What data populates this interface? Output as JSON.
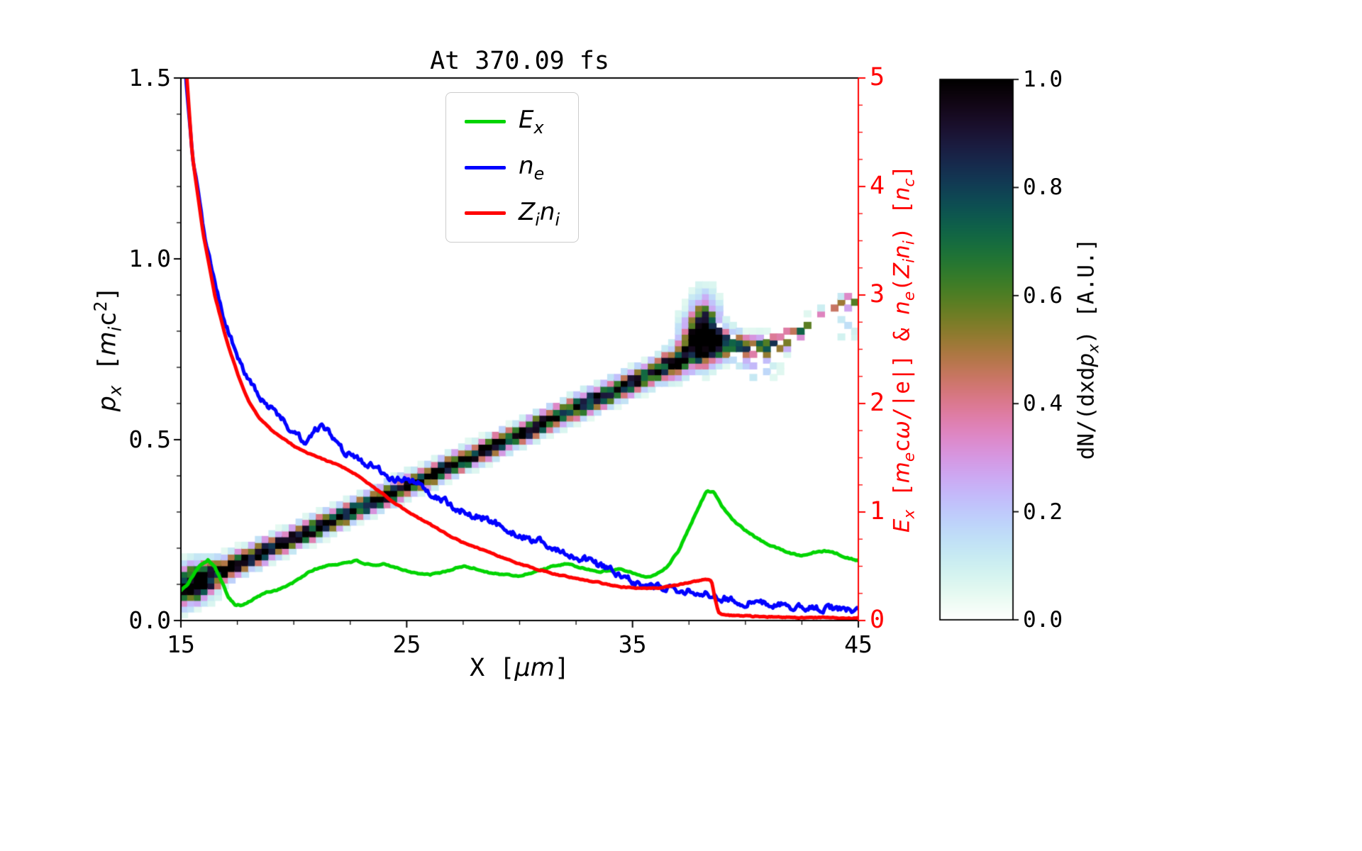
{
  "title": "At 370.09 fs",
  "axes": {
    "x": {
      "label": "X [μm]",
      "range": [
        15,
        45
      ],
      "tick_values": [
        15,
        25,
        35,
        45
      ],
      "tick_labels": [
        "15",
        "25",
        "35",
        "45"
      ],
      "minor_step": 2.5
    },
    "y_left": {
      "label": "p_x [m_ic^2]",
      "range": [
        0,
        1.5
      ],
      "tick_values": [
        0.0,
        0.5,
        1.0,
        1.5
      ],
      "tick_labels": [
        "0.0",
        "0.5",
        "1.0",
        "1.5"
      ],
      "minor_step": 0.1,
      "color": "#000000"
    },
    "y_right": {
      "label": "E_x [m_ecω/|e|] & n_e(Z_in_i) [n_c]",
      "range": [
        0,
        5
      ],
      "tick_values": [
        0,
        1,
        2,
        3,
        4,
        5
      ],
      "tick_labels": [
        "0",
        "1",
        "2",
        "3",
        "4",
        "5"
      ],
      "minor_step": 0.25,
      "color": "#ff0000"
    }
  },
  "colorbar": {
    "label": "dN/(dxdp_x) [A.U.]",
    "range": [
      0,
      1
    ],
    "tick_values": [
      0.0,
      0.2,
      0.4,
      0.6,
      0.8,
      1.0
    ],
    "tick_labels": [
      "0.0",
      "0.2",
      "0.4",
      "0.6",
      "0.8",
      "1.0"
    ],
    "colormap": "cubehelix_r"
  },
  "legend": [
    {
      "label": "E_x",
      "color": "#00d400"
    },
    {
      "label": "n_e",
      "color": "#0000ff"
    },
    {
      "label": "Z_in_i",
      "color": "#ff0000"
    }
  ],
  "chart_data": {
    "type": "composite",
    "subtypes": [
      "heatmap",
      "line"
    ],
    "title": "At 370.09 fs",
    "xlabel": "X [μm]",
    "xlim": [
      15,
      45
    ],
    "ylim_left": [
      0,
      1.5
    ],
    "ylim_right": [
      0,
      5
    ],
    "lines": [
      {
        "name": "E_x",
        "axis": "right",
        "color": "#00d400",
        "jitter": 0.004,
        "points": [
          [
            15,
            0.28
          ],
          [
            15.3,
            0.33
          ],
          [
            15.6,
            0.44
          ],
          [
            15.9,
            0.52
          ],
          [
            16.2,
            0.56
          ],
          [
            16.5,
            0.5
          ],
          [
            16.8,
            0.36
          ],
          [
            17.1,
            0.22
          ],
          [
            17.4,
            0.15
          ],
          [
            17.7,
            0.14
          ],
          [
            18,
            0.17
          ],
          [
            18.4,
            0.22
          ],
          [
            18.8,
            0.26
          ],
          [
            19.2,
            0.28
          ],
          [
            19.6,
            0.31
          ],
          [
            20,
            0.35
          ],
          [
            20.4,
            0.41
          ],
          [
            20.8,
            0.46
          ],
          [
            21.2,
            0.49
          ],
          [
            21.6,
            0.51
          ],
          [
            22,
            0.52
          ],
          [
            22.4,
            0.54
          ],
          [
            22.8,
            0.55
          ],
          [
            23.2,
            0.52
          ],
          [
            23.6,
            0.5
          ],
          [
            24,
            0.52
          ],
          [
            24.4,
            0.5
          ],
          [
            24.8,
            0.47
          ],
          [
            25.2,
            0.45
          ],
          [
            25.6,
            0.43
          ],
          [
            26,
            0.42
          ],
          [
            26.5,
            0.44
          ],
          [
            27,
            0.47
          ],
          [
            27.5,
            0.5
          ],
          [
            28,
            0.48
          ],
          [
            28.5,
            0.45
          ],
          [
            29,
            0.43
          ],
          [
            29.5,
            0.42
          ],
          [
            30,
            0.41
          ],
          [
            30.5,
            0.44
          ],
          [
            31,
            0.47
          ],
          [
            31.5,
            0.5
          ],
          [
            32,
            0.52
          ],
          [
            32.5,
            0.5
          ],
          [
            33,
            0.47
          ],
          [
            33.5,
            0.45
          ],
          [
            34,
            0.46
          ],
          [
            34.5,
            0.48
          ],
          [
            35,
            0.44
          ],
          [
            35.5,
            0.4
          ],
          [
            36,
            0.42
          ],
          [
            36.5,
            0.49
          ],
          [
            37,
            0.63
          ],
          [
            37.5,
            0.85
          ],
          [
            38,
            1.08
          ],
          [
            38.3,
            1.2
          ],
          [
            38.6,
            1.18
          ],
          [
            39,
            1.04
          ],
          [
            39.5,
            0.92
          ],
          [
            40,
            0.83
          ],
          [
            40.5,
            0.76
          ],
          [
            41,
            0.7
          ],
          [
            41.5,
            0.66
          ],
          [
            42,
            0.62
          ],
          [
            42.5,
            0.6
          ],
          [
            43,
            0.63
          ],
          [
            43.5,
            0.64
          ],
          [
            44,
            0.62
          ],
          [
            44.5,
            0.58
          ],
          [
            45,
            0.55
          ]
        ]
      },
      {
        "name": "n_e",
        "axis": "right",
        "color": "#0000ff",
        "jitter": 0.02,
        "points": [
          [
            15,
            6.2
          ],
          [
            15.2,
            5.0
          ],
          [
            15.5,
            4.3
          ],
          [
            16,
            3.6
          ],
          [
            16.5,
            3.1
          ],
          [
            17,
            2.72
          ],
          [
            17.5,
            2.45
          ],
          [
            18,
            2.2
          ],
          [
            18.5,
            2.05
          ],
          [
            19,
            1.96
          ],
          [
            19.5,
            1.86
          ],
          [
            20,
            1.72
          ],
          [
            20.5,
            1.66
          ],
          [
            21,
            1.76
          ],
          [
            21.3,
            1.8
          ],
          [
            21.6,
            1.72
          ],
          [
            22,
            1.58
          ],
          [
            22.5,
            1.52
          ],
          [
            23,
            1.47
          ],
          [
            23.5,
            1.43
          ],
          [
            24,
            1.36
          ],
          [
            24.5,
            1.3
          ],
          [
            25,
            1.32
          ],
          [
            25.5,
            1.26
          ],
          [
            26,
            1.17
          ],
          [
            26.5,
            1.12
          ],
          [
            27,
            1.06
          ],
          [
            27.5,
            1.01
          ],
          [
            28,
            0.97
          ],
          [
            28.5,
            0.94
          ],
          [
            29,
            0.89
          ],
          [
            29.5,
            0.81
          ],
          [
            30,
            0.79
          ],
          [
            30.5,
            0.74
          ],
          [
            31,
            0.73
          ],
          [
            31.5,
            0.66
          ],
          [
            32,
            0.61
          ],
          [
            32.5,
            0.59
          ],
          [
            33,
            0.56
          ],
          [
            33.5,
            0.51
          ],
          [
            34,
            0.46
          ],
          [
            34.5,
            0.41
          ],
          [
            35,
            0.36
          ],
          [
            35.5,
            0.33
          ],
          [
            36,
            0.31
          ],
          [
            36.5,
            0.29
          ],
          [
            37,
            0.28
          ],
          [
            37.5,
            0.27
          ],
          [
            38,
            0.26
          ],
          [
            38.5,
            0.23
          ],
          [
            39,
            0.21
          ],
          [
            39.5,
            0.19
          ],
          [
            40,
            0.17
          ],
          [
            40.5,
            0.16
          ],
          [
            41,
            0.15
          ],
          [
            41.5,
            0.14
          ],
          [
            42,
            0.13
          ],
          [
            42.5,
            0.13
          ],
          [
            43,
            0.12
          ],
          [
            43.5,
            0.11
          ],
          [
            44,
            0.11
          ],
          [
            44.5,
            0.11
          ],
          [
            45,
            0.1
          ]
        ]
      },
      {
        "name": "Z_in_i",
        "axis": "right",
        "color": "#ff0000",
        "jitter": 0.003,
        "points": [
          [
            15,
            6.6
          ],
          [
            15.2,
            5.2
          ],
          [
            15.5,
            4.3
          ],
          [
            16,
            3.55
          ],
          [
            16.5,
            3.0
          ],
          [
            17,
            2.6
          ],
          [
            17.5,
            2.28
          ],
          [
            18,
            2.02
          ],
          [
            18.5,
            1.86
          ],
          [
            19,
            1.76
          ],
          [
            19.5,
            1.68
          ],
          [
            20,
            1.61
          ],
          [
            20.5,
            1.55
          ],
          [
            21,
            1.51
          ],
          [
            21.5,
            1.47
          ],
          [
            22,
            1.43
          ],
          [
            22.5,
            1.38
          ],
          [
            23,
            1.31
          ],
          [
            23.5,
            1.23
          ],
          [
            24,
            1.16
          ],
          [
            24.5,
            1.08
          ],
          [
            25,
            1.01
          ],
          [
            25.5,
            0.95
          ],
          [
            26,
            0.89
          ],
          [
            26.5,
            0.83
          ],
          [
            27,
            0.77
          ],
          [
            27.5,
            0.72
          ],
          [
            28,
            0.68
          ],
          [
            28.5,
            0.64
          ],
          [
            29,
            0.6
          ],
          [
            29.5,
            0.56
          ],
          [
            30,
            0.52
          ],
          [
            30.5,
            0.49
          ],
          [
            31,
            0.46
          ],
          [
            31.5,
            0.43
          ],
          [
            32,
            0.41
          ],
          [
            32.5,
            0.39
          ],
          [
            33,
            0.37
          ],
          [
            33.5,
            0.35
          ],
          [
            34,
            0.33
          ],
          [
            34.5,
            0.31
          ],
          [
            35,
            0.3
          ],
          [
            35.5,
            0.3
          ],
          [
            36,
            0.3
          ],
          [
            36.5,
            0.31
          ],
          [
            37,
            0.33
          ],
          [
            37.5,
            0.35
          ],
          [
            38,
            0.37
          ],
          [
            38.3,
            0.38
          ],
          [
            38.5,
            0.37
          ],
          [
            38.65,
            0.2
          ],
          [
            38.8,
            0.08
          ],
          [
            39,
            0.055
          ],
          [
            39.5,
            0.045
          ],
          [
            40,
            0.04
          ],
          [
            41,
            0.035
          ],
          [
            42,
            0.03
          ],
          [
            43,
            0.028
          ],
          [
            44,
            0.025
          ],
          [
            45,
            0.022
          ]
        ]
      }
    ],
    "heatmap": {
      "name": "dN/(dxdp_x)",
      "axis": "left",
      "colormap": "cubehelix_r",
      "value_range": [
        0,
        1
      ],
      "cell_dx": 0.3,
      "cell_dp": 0.016,
      "centerline": [
        [
          15,
          0.085
        ],
        [
          16,
          0.115
        ],
        [
          17,
          0.143
        ],
        [
          18,
          0.172
        ],
        [
          19,
          0.2
        ],
        [
          20,
          0.228
        ],
        [
          21,
          0.257
        ],
        [
          22,
          0.285
        ],
        [
          23,
          0.315
        ],
        [
          24,
          0.343
        ],
        [
          25,
          0.372
        ],
        [
          26,
          0.4
        ],
        [
          27,
          0.43
        ],
        [
          28,
          0.458
        ],
        [
          29,
          0.487
        ],
        [
          30,
          0.515
        ],
        [
          31,
          0.545
        ],
        [
          32,
          0.573
        ],
        [
          33,
          0.602
        ],
        [
          34,
          0.63
        ],
        [
          35,
          0.658
        ],
        [
          36,
          0.688
        ],
        [
          37,
          0.718
        ],
        [
          37.7,
          0.75
        ],
        [
          38.3,
          0.77
        ],
        [
          39,
          0.765
        ],
        [
          40,
          0.755
        ],
        [
          41,
          0.757
        ],
        [
          42,
          0.782
        ],
        [
          43,
          0.82
        ],
        [
          44,
          0.858
        ],
        [
          45,
          0.895
        ]
      ],
      "halfwidth": [
        [
          15,
          0.03
        ],
        [
          16,
          0.026
        ],
        [
          17,
          0.02
        ],
        [
          20,
          0.018
        ],
        [
          30,
          0.018
        ],
        [
          36,
          0.02
        ],
        [
          37.5,
          0.03
        ],
        [
          38.3,
          0.042
        ],
        [
          39,
          0.026
        ],
        [
          40,
          0.02
        ],
        [
          45,
          0.018
        ]
      ],
      "intensity": [
        [
          15,
          0.85
        ],
        [
          15.5,
          0.95
        ],
        [
          16,
          1.0
        ],
        [
          36,
          1.0
        ],
        [
          38,
          1.0
        ],
        [
          39,
          0.95
        ],
        [
          40,
          0.85
        ],
        [
          41,
          0.7
        ],
        [
          42,
          0.6
        ],
        [
          43,
          0.55
        ],
        [
          44,
          0.5
        ],
        [
          45,
          0.55
        ]
      ],
      "dropout": [
        [
          15,
          0.0
        ],
        [
          38.5,
          0.0
        ],
        [
          39.5,
          0.15
        ],
        [
          40.5,
          0.35
        ],
        [
          41.5,
          0.5
        ],
        [
          43,
          0.6
        ],
        [
          45,
          0.62
        ]
      ],
      "blobs": [
        {
          "x": 38.2,
          "p": 0.835,
          "sx": 0.4,
          "sp": 0.05,
          "amp": 0.45
        },
        {
          "x": 38.0,
          "p": 0.8,
          "sx": 0.55,
          "sp": 0.035,
          "amp": 0.55
        },
        {
          "x": 15.7,
          "p": 0.105,
          "sx": 0.55,
          "sp": 0.035,
          "amp": 0.5
        },
        {
          "x": 40.6,
          "p": 0.695,
          "sx": 0.55,
          "sp": 0.018,
          "amp": 0.3
        },
        {
          "x": 44.6,
          "p": 0.8,
          "sx": 0.3,
          "sp": 0.02,
          "amp": 0.2
        }
      ]
    }
  }
}
